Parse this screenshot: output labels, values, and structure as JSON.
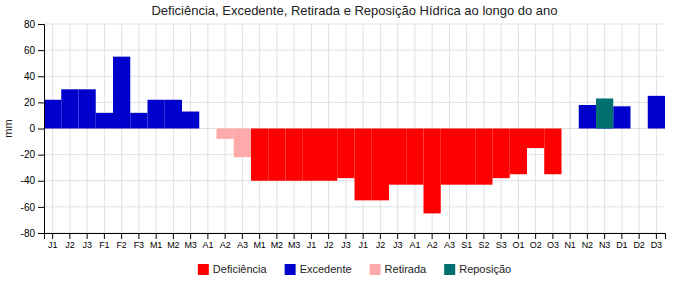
{
  "chart_data": {
    "type": "bar",
    "title": "Deficiência, Excedente, Retirada e Reposição Hídrica ao longo do ano",
    "ylabel": "mm",
    "categories": [
      "J1",
      "J2",
      "J3",
      "F1",
      "F2",
      "F3",
      "M1",
      "M2",
      "M3",
      "A1",
      "A2",
      "A3",
      "M1",
      "M2",
      "M3",
      "J1",
      "J2",
      "J3",
      "J1",
      "J2",
      "J3",
      "A1",
      "A2",
      "A3",
      "S1",
      "S2",
      "S3",
      "O1",
      "O2",
      "O3",
      "N1",
      "N2",
      "N3",
      "D1",
      "D2",
      "D3"
    ],
    "series": [
      {
        "name": "Deficiência",
        "color": "#FF0000",
        "values": [
          0,
          0,
          0,
          0,
          0,
          0,
          0,
          0,
          0,
          0,
          0,
          0,
          -40,
          -40,
          -40,
          -40,
          -40,
          -38,
          -55,
          -55,
          -43,
          -43,
          -65,
          -43,
          -43,
          -43,
          -38,
          -35,
          -15,
          -35,
          0,
          0,
          0,
          0,
          0,
          0
        ]
      },
      {
        "name": "Excedente",
        "color": "#0000CC",
        "values": [
          22,
          30,
          30,
          12,
          55,
          12,
          22,
          22,
          13,
          0,
          0,
          0,
          0,
          0,
          0,
          0,
          0,
          0,
          0,
          0,
          0,
          0,
          0,
          0,
          0,
          0,
          0,
          0,
          0,
          0,
          0,
          18,
          8,
          17,
          0,
          25
        ]
      },
      {
        "name": "Retirada",
        "color": "#FFAAAA",
        "values": [
          0,
          0,
          0,
          0,
          0,
          0,
          0,
          0,
          0,
          0,
          -8,
          -22,
          0,
          0,
          0,
          0,
          0,
          0,
          0,
          0,
          0,
          0,
          0,
          0,
          0,
          0,
          0,
          0,
          0,
          0,
          0,
          0,
          0,
          0,
          0,
          0
        ]
      },
      {
        "name": "Reposição",
        "color": "#007070",
        "values": [
          0,
          0,
          0,
          0,
          0,
          0,
          0,
          0,
          0,
          0,
          0,
          0,
          0,
          0,
          0,
          0,
          0,
          0,
          0,
          0,
          0,
          0,
          0,
          0,
          0,
          0,
          0,
          0,
          0,
          0,
          0,
          0,
          23,
          0,
          0,
          0
        ]
      }
    ],
    "ylim": [
      -80,
      80
    ],
    "yticks": [
      -80,
      -60,
      -40,
      -20,
      0,
      20,
      40,
      60,
      80
    ],
    "grid": true,
    "legend": "bottom"
  }
}
